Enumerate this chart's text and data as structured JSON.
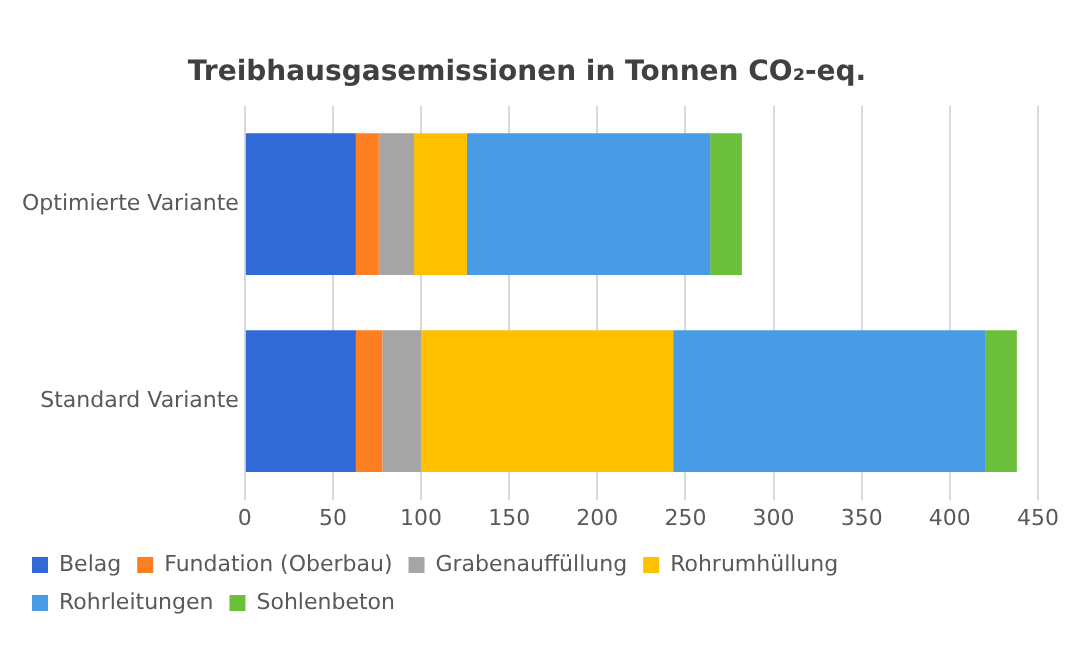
{
  "chart_data": {
    "type": "bar",
    "orientation": "horizontal",
    "stacked": true,
    "title": "Treibhausgasemissionen in Tonnen CO₂-eq.",
    "categories": [
      "Optimierte Variante",
      "Standard Variante"
    ],
    "series": [
      {
        "name": "Belag",
        "color": "#3169d6",
        "values": [
          63,
          63
        ]
      },
      {
        "name": "Fundation (Oberbau)",
        "color": "#fd7f21",
        "values": [
          13,
          15
        ]
      },
      {
        "name": "Grabenauffüllung",
        "color": "#a5a5a5",
        "values": [
          20,
          22
        ]
      },
      {
        "name": "Rohrumhüllung",
        "color": "#ffc000",
        "values": [
          30,
          143
        ]
      },
      {
        "name": "Rohrleitungen",
        "color": "#4a9be6",
        "values": [
          138,
          177
        ]
      },
      {
        "name": "Sohlenbeton",
        "color": "#6bbf3a",
        "values": [
          18,
          18
        ]
      }
    ],
    "xlim": [
      0,
      450
    ],
    "xticks": [
      0,
      50,
      100,
      150,
      200,
      250,
      300,
      350,
      400,
      450
    ],
    "grid": "x",
    "legend": "bottom"
  }
}
